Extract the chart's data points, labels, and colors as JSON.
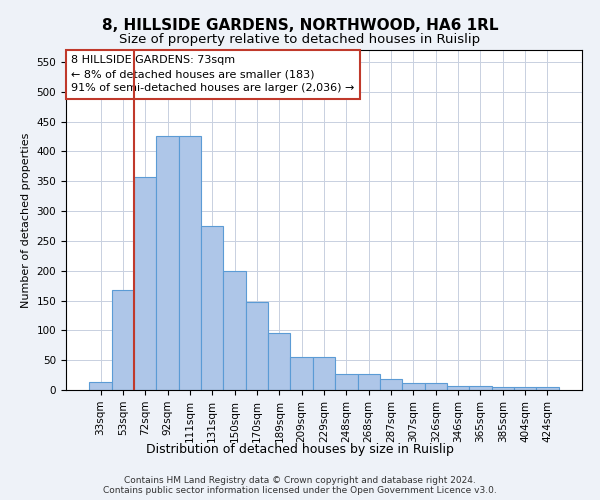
{
  "title": "8, HILLSIDE GARDENS, NORTHWOOD, HA6 1RL",
  "subtitle": "Size of property relative to detached houses in Ruislip",
  "xlabel": "Distribution of detached houses by size in Ruislip",
  "ylabel": "Number of detached properties",
  "categories": [
    "33sqm",
    "53sqm",
    "72sqm",
    "92sqm",
    "111sqm",
    "131sqm",
    "150sqm",
    "170sqm",
    "189sqm",
    "209sqm",
    "229sqm",
    "248sqm",
    "268sqm",
    "287sqm",
    "307sqm",
    "326sqm",
    "346sqm",
    "365sqm",
    "385sqm",
    "404sqm",
    "424sqm"
  ],
  "values": [
    13,
    168,
    357,
    425,
    425,
    275,
    200,
    148,
    96,
    55,
    55,
    27,
    27,
    19,
    12,
    12,
    7,
    6,
    5,
    5,
    5
  ],
  "bar_color": "#aec6e8",
  "bar_edge_color": "#5b9bd5",
  "vline_x_index": 2,
  "vline_color": "#c0392b",
  "annotation_text": "8 HILLSIDE GARDENS: 73sqm\n← 8% of detached houses are smaller (183)\n91% of semi-detached houses are larger (2,036) →",
  "annotation_box_color": "#ffffff",
  "annotation_box_edge_color": "#c0392b",
  "ylim": [
    0,
    570
  ],
  "yticks": [
    0,
    50,
    100,
    150,
    200,
    250,
    300,
    350,
    400,
    450,
    500,
    550
  ],
  "footnote": "Contains HM Land Registry data © Crown copyright and database right 2024.\nContains public sector information licensed under the Open Government Licence v3.0.",
  "background_color": "#eef2f8",
  "plot_bg_color": "#ffffff",
  "title_fontsize": 11,
  "subtitle_fontsize": 9.5,
  "xlabel_fontsize": 9,
  "ylabel_fontsize": 8,
  "tick_fontsize": 7.5,
  "annotation_fontsize": 8,
  "footnote_fontsize": 6.5
}
